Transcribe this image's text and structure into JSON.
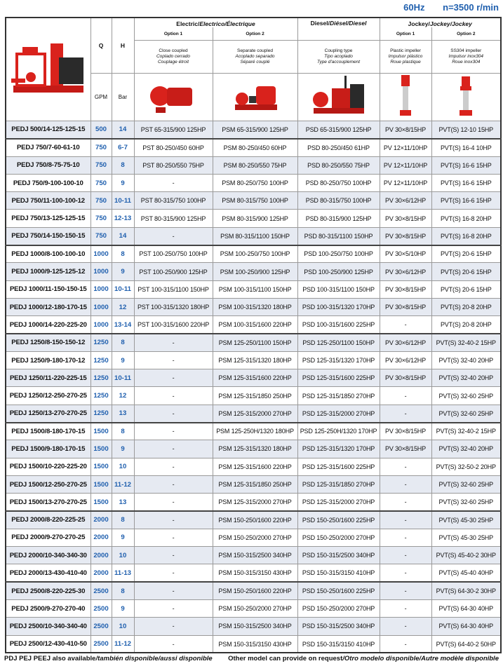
{
  "top": {
    "freq": "60Hz",
    "speed": "n=3500 r/min"
  },
  "header": {
    "q": "Q",
    "h": "H",
    "q_unit": "GPM",
    "h_unit": "Bar",
    "electric": {
      "en": "Electric/",
      "es_fr": "Electrico/Électrique"
    },
    "diesel": {
      "en": "Diesel/",
      "es_fr": "Diésel/Diesel"
    },
    "jockey": {
      "en": "Jockey/",
      "es_fr": "Jockey/Jockey"
    },
    "option1": "Option 1",
    "option2": "Option 2",
    "close_coupled": [
      "Close coupled",
      "Coplado cerrado",
      "Couplage étroit"
    ],
    "separate_coupled": [
      "Separate coupled",
      "Acoplado separado",
      "Séparé couplé"
    ],
    "coupling_type": [
      "Coupling type",
      "Tipo acoplado",
      "Type d'accouplement"
    ],
    "plastic_impeller": [
      "Plastic impeller",
      "Impulsor plástico",
      "Roue plastique"
    ],
    "ss304_impeller": [
      "SS304 impeller",
      "Impulsor inox304",
      "Roue inox304"
    ]
  },
  "colors": {
    "accent_blue": "#1f5fae",
    "pump_red": "#d9221c",
    "row_shade": "#e6eaf2"
  },
  "rows": [
    [
      "PEDJ 500/14-125-125-15",
      "500",
      "14",
      "PST 65-315/900 125HP",
      "PSM 65-315/900 125HP",
      "PSD 65-315/900 125HP",
      "PV 30×8/15HP",
      "PVT(S) 12-10 15HP"
    ],
    [
      "PEDJ 750/7-60-61-10",
      "750",
      "6-7",
      "PST 80-250/450 60HP",
      "PSM 80-250/450 60HP",
      "PSD 80-250/450 61HP",
      "PV 12×11/10HP",
      "PVT(S) 16-4 10HP"
    ],
    [
      "PEDJ 750/8-75-75-10",
      "750",
      "8",
      "PST 80-250/550 75HP",
      "PSM 80-250/550 75HP",
      "PSD 80-250/550 75HP",
      "PV 12×11/10HP",
      "PVT(S) 16-6 15HP"
    ],
    [
      "PEDJ 750/9-100-100-10",
      "750",
      "9",
      "-",
      "PSM 80-250/750 100HP",
      "PSD 80-250/750 100HP",
      "PV 12×11/10HP",
      "PVT(S) 16-6 15HP"
    ],
    [
      "PEDJ 750/11-100-100-12",
      "750",
      "10-11",
      "PST 80-315/750 100HP",
      "PSM 80-315/750 100HP",
      "PSD 80-315/750 100HP",
      "PV 30×6/12HP",
      "PVT(S) 16-6 15HP"
    ],
    [
      "PEDJ 750/13-125-125-15",
      "750",
      "12-13",
      "PST 80-315/900 125HP",
      "PSM 80-315/900 125HP",
      "PSD 80-315/900 125HP",
      "PV 30×8/15HP",
      "PVT(S) 16-8 20HP"
    ],
    [
      "PEDJ 750/14-150-150-15",
      "750",
      "14",
      "-",
      "PSM 80-315/1100 150HP",
      "PSD 80-315/1100 150HP",
      "PV 30×8/15HP",
      "PVT(S) 16-8 20HP"
    ],
    [
      "PEDJ 1000/8-100-100-10",
      "1000",
      "8",
      "PST 100-250/750 100HP",
      "PSM 100-250/750 100HP",
      "PSD 100-250/750 100HP",
      "PV 30×5/10HP",
      "PVT(S) 20-6 15HP"
    ],
    [
      "PEDJ 1000/9-125-125-12",
      "1000",
      "9",
      "PST 100-250/900 125HP",
      "PSM 100-250/900 125HP",
      "PSD 100-250/900 125HP",
      "PV 30×6/12HP",
      "PVT(S) 20-6 15HP"
    ],
    [
      "PEDJ 1000/11-150-150-15",
      "1000",
      "10-11",
      "PST 100-315/1100 150HP",
      "PSM 100-315/1100 150HP",
      "PSD 100-315/1100 150HP",
      "PV 30×8/15HP",
      "PVT(S) 20-6 15HP"
    ],
    [
      "PEDJ 1000/12-180-170-15",
      "1000",
      "12",
      "PST 100-315/1320 180HP",
      "PSM 100-315/1320 180HP",
      "PSD 100-315/1320 170HP",
      "PV 30×8/15HP",
      "PVT(S) 20-8 20HP"
    ],
    [
      "PEDJ 1000/14-220-225-20",
      "1000",
      "13-14",
      "PST 100-315/1600 220HP",
      "PSM 100-315/1600 220HP",
      "PSD 100-315/1600 225HP",
      "-",
      "PVT(S) 20-8 20HP"
    ],
    [
      "PEDJ 1250/8-150-150-12",
      "1250",
      "8",
      "-",
      "PSM 125-250/1100 150HP",
      "PSD 125-250/1100 150HP",
      "PV 30×6/12HP",
      "PVT(S) 32-40-2 15HP"
    ],
    [
      "PEDJ 1250/9-180-170-12",
      "1250",
      "9",
      "-",
      "PSM 125-315/1320 180HP",
      "PSD 125-315/1320 170HP",
      "PV 30×6/12HP",
      "PVT(S) 32-40 20HP"
    ],
    [
      "PEDJ 1250/11-220-225-15",
      "1250",
      "10-11",
      "-",
      "PSM 125-315/1600 220HP",
      "PSD 125-315/1600 225HP",
      "PV 30×8/15HP",
      "PVT(S) 32-40 20HP"
    ],
    [
      "PEDJ 1250/12-250-270-25",
      "1250",
      "12",
      "-",
      "PSM 125-315/1850 250HP",
      "PSD 125-315/1850 270HP",
      "-",
      "PVT(S) 32-60 25HP"
    ],
    [
      "PEDJ 1250/13-270-270-25",
      "1250",
      "13",
      "-",
      "PSM 125-315/2000 270HP",
      "PSD 125-315/2000 270HP",
      "-",
      "PVT(S) 32-60 25HP"
    ],
    [
      "PEDJ 1500/8-180-170-15",
      "1500",
      "8",
      "-",
      "PSM 125-250H/1320 180HP",
      "PSD 125-250H/1320 170HP",
      "PV 30×8/15HP",
      "PVT(S) 32-40-2 15HP"
    ],
    [
      "PEDJ 1500/9-180-170-15",
      "1500",
      "9",
      "-",
      "PSM 125-315/1320 180HP",
      "PSD 125-315/1320 170HP",
      "PV 30×8/15HP",
      "PVT(S) 32-40 20HP"
    ],
    [
      "PEDJ 1500/10-220-225-20",
      "1500",
      "10",
      "-",
      "PSM 125-315/1600 220HP",
      "PSD 125-315/1600 225HP",
      "-",
      "PVT(S) 32-50-2 20HP"
    ],
    [
      "PEDJ 1500/12-250-270-25",
      "1500",
      "11-12",
      "-",
      "PSM 125-315/1850 250HP",
      "PSD 125-315/1850 270HP",
      "-",
      "PVT(S) 32-60 25HP"
    ],
    [
      "PEDJ 1500/13-270-270-25",
      "1500",
      "13",
      "-",
      "PSM 125-315/2000 270HP",
      "PSD 125-315/2000 270HP",
      "-",
      "PVT(S) 32-60 25HP"
    ],
    [
      "PEDJ 2000/8-220-225-25",
      "2000",
      "8",
      "-",
      "PSM 150-250/1600 220HP",
      "PSD 150-250/1600 225HP",
      "-",
      "PVT(S) 45-30 25HP"
    ],
    [
      "PEDJ 2000/9-270-270-25",
      "2000",
      "9",
      "-",
      "PSM 150-250/2000 270HP",
      "PSD 150-250/2000 270HP",
      "-",
      "PVT(S) 45-30 25HP"
    ],
    [
      "PEDJ 2000/10-340-340-30",
      "2000",
      "10",
      "-",
      "PSM 150-315/2500 340HP",
      "PSD 150-315/2500 340HP",
      "-",
      "PVT(S) 45-40-2 30HP"
    ],
    [
      "PEDJ 2000/13-430-410-40",
      "2000",
      "11-13",
      "-",
      "PSM 150-315/3150 430HP",
      "PSD 150-315/3150 410HP",
      "-",
      "PVT(S) 45-40 40HP"
    ],
    [
      "PEDJ 2500/8-220-225-30",
      "2500",
      "8",
      "-",
      "PSM 150-250/1600 220HP",
      "PSD 150-250/1600 225HP",
      "-",
      "PVT(S) 64-30-2 30HP"
    ],
    [
      "PEDJ 2500/9-270-270-40",
      "2500",
      "9",
      "-",
      "PSM 150-250/2000 270HP",
      "PSD 150-250/2000 270HP",
      "-",
      "PVT(S) 64-30 40HP"
    ],
    [
      "PEDJ 2500/10-340-340-40",
      "2500",
      "10",
      "-",
      "PSM 150-315/2500 340HP",
      "PSD 150-315/2500 340HP",
      "-",
      "PVT(S) 64-30 40HP"
    ],
    [
      "PEDJ 2500/12-430-410-50",
      "2500",
      "11-12",
      "-",
      "PSM 150-315/3150 430HP",
      "PSD 150-315/3150 410HP",
      "-",
      "PVT(S) 64-40-2 50HP"
    ]
  ],
  "footer": {
    "left_en": "PDJ PEJ PEEJ also available",
    "left_i": "/también disponible/aussi disponible",
    "right_en": "Other model can provide on request",
    "right_i": "/Otro modelo disponible/Autre modèle disponible"
  }
}
